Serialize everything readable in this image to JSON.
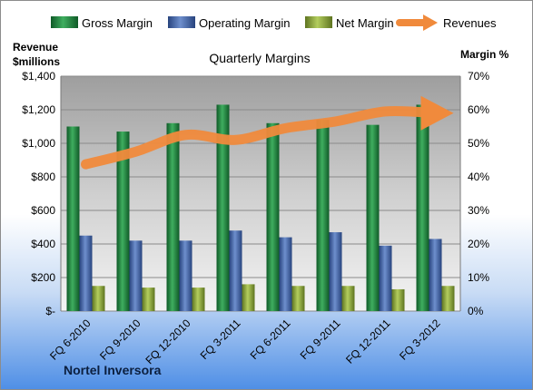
{
  "chart_data": {
    "type": "bar",
    "title": "Quarterly Margins",
    "left_axis_title": [
      "Revenue",
      "$millions"
    ],
    "right_axis_title": "Margin %",
    "footer": "Nortel Inversora",
    "categories": [
      "FQ 6-2010",
      "FQ 9-2010",
      "FQ 12-2010",
      "FQ 3-2011",
      "FQ 6-2011",
      "FQ 9-2011",
      "FQ 12-2011",
      "FQ 3-2012"
    ],
    "series": [
      {
        "name": "Gross Margin",
        "axis": "right",
        "kind": "bar",
        "color": "#1e7a3c",
        "values": [
          55,
          53.5,
          56,
          61.5,
          56,
          57,
          55.5,
          61.5
        ]
      },
      {
        "name": "Operating Margin",
        "axis": "right",
        "kind": "bar",
        "color": "#3b5fa8",
        "values": [
          22.5,
          21,
          21,
          24,
          22,
          23.5,
          19.5,
          21.5
        ]
      },
      {
        "name": "Net Margin",
        "axis": "right",
        "kind": "bar",
        "color": "#8aa63a",
        "values": [
          7.5,
          7,
          7,
          8,
          7.5,
          7.5,
          6.5,
          7.5
        ]
      },
      {
        "name": "Revenues",
        "axis": "left",
        "kind": "line-arrow",
        "color": "#f08a3c",
        "values": [
          875,
          950,
          1050,
          1020,
          1090,
          1130,
          1190,
          1180
        ]
      }
    ],
    "left_axis": {
      "min": 0,
      "max": 1400,
      "ticks": [
        "$-",
        "$200",
        "$400",
        "$600",
        "$800",
        "$1,000",
        "$1,200",
        "$1,400"
      ]
    },
    "right_axis": {
      "min": 0,
      "max": 70,
      "ticks": [
        "0%",
        "10%",
        "20%",
        "30%",
        "40%",
        "50%",
        "60%",
        "70%"
      ]
    },
    "legend_position": "top",
    "grid": true
  }
}
